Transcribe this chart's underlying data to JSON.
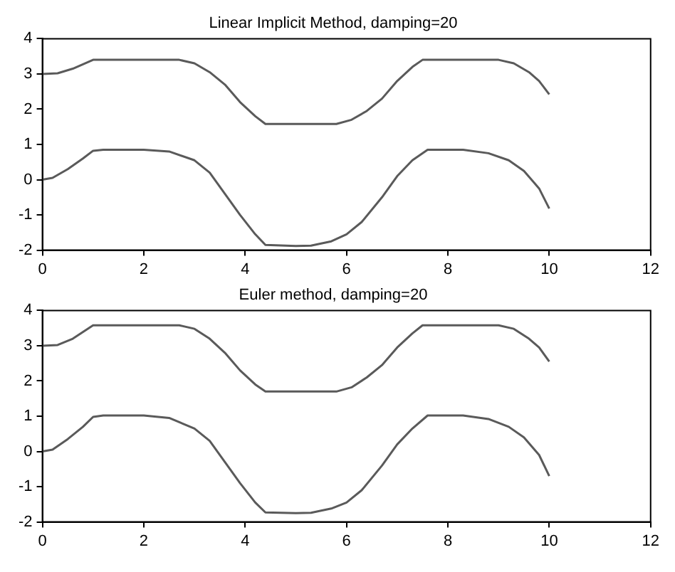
{
  "chart_data": [
    {
      "type": "line",
      "title": "Linear Implicit Method, damping=20",
      "xlim": [
        0,
        12
      ],
      "xticks": [
        0,
        2,
        4,
        6,
        8,
        10,
        12
      ],
      "ylim": [
        -2,
        4
      ],
      "yticks": [
        -2,
        -1,
        0,
        1,
        2,
        3,
        4
      ],
      "grid": false,
      "legend": false,
      "marker": "none",
      "line_style": "solid",
      "series": [
        {
          "color": "#5a5a5a",
          "x": [
            0,
            0.3,
            0.6,
            1.0,
            2.0,
            2.7,
            3.0,
            3.3,
            3.6,
            3.9,
            4.2,
            4.4,
            5.0,
            5.8,
            6.1,
            6.4,
            6.7,
            7.0,
            7.3,
            7.5,
            8.0,
            9.0,
            9.3,
            9.6,
            9.8,
            10
          ],
          "values": [
            3.0,
            3.02,
            3.15,
            3.4,
            3.4,
            3.4,
            3.3,
            3.05,
            2.7,
            2.2,
            1.8,
            1.58,
            1.58,
            1.58,
            1.7,
            1.95,
            2.3,
            2.8,
            3.2,
            3.4,
            3.4,
            3.4,
            3.3,
            3.05,
            2.8,
            2.42
          ]
        },
        {
          "color": "#5a5a5a",
          "x": [
            0,
            0.2,
            0.5,
            0.8,
            1.0,
            1.2,
            2.0,
            2.5,
            3.0,
            3.3,
            3.6,
            3.9,
            4.2,
            4.4,
            5.0,
            5.3,
            5.7,
            6.0,
            6.3,
            6.7,
            7.0,
            7.3,
            7.6,
            8.3,
            8.8,
            9.2,
            9.5,
            9.8,
            10
          ],
          "values": [
            0,
            0.05,
            0.3,
            0.6,
            0.82,
            0.85,
            0.85,
            0.8,
            0.55,
            0.2,
            -0.4,
            -1.0,
            -1.55,
            -1.85,
            -1.88,
            -1.87,
            -1.75,
            -1.55,
            -1.2,
            -0.5,
            0.1,
            0.55,
            0.85,
            0.85,
            0.75,
            0.55,
            0.25,
            -0.25,
            -0.82
          ]
        }
      ]
    },
    {
      "type": "line",
      "title": "Euler method, damping=20",
      "xlim": [
        0,
        12
      ],
      "xticks": [
        0,
        2,
        4,
        6,
        8,
        10,
        12
      ],
      "ylim": [
        -2,
        4
      ],
      "yticks": [
        -2,
        -1,
        0,
        1,
        2,
        3,
        4
      ],
      "grid": false,
      "legend": false,
      "marker": "none",
      "line_style": "solid",
      "series": [
        {
          "color": "#5a5a5a",
          "x": [
            0,
            0.3,
            0.6,
            1.0,
            2.0,
            2.7,
            3.0,
            3.3,
            3.6,
            3.9,
            4.2,
            4.4,
            5.0,
            5.8,
            6.1,
            6.4,
            6.7,
            7.0,
            7.3,
            7.5,
            8.0,
            9.0,
            9.3,
            9.6,
            9.8,
            10
          ],
          "values": [
            3.0,
            3.02,
            3.2,
            3.58,
            3.58,
            3.58,
            3.48,
            3.2,
            2.8,
            2.3,
            1.9,
            1.7,
            1.7,
            1.7,
            1.82,
            2.1,
            2.45,
            2.95,
            3.35,
            3.58,
            3.58,
            3.58,
            3.48,
            3.2,
            2.95,
            2.55
          ]
        },
        {
          "color": "#5a5a5a",
          "x": [
            0,
            0.2,
            0.5,
            0.8,
            1.0,
            1.2,
            2.0,
            2.5,
            3.0,
            3.3,
            3.6,
            3.9,
            4.2,
            4.4,
            5.0,
            5.3,
            5.7,
            6.0,
            6.3,
            6.7,
            7.0,
            7.3,
            7.6,
            8.3,
            8.8,
            9.2,
            9.5,
            9.8,
            10
          ],
          "values": [
            0,
            0.05,
            0.35,
            0.7,
            0.98,
            1.02,
            1.02,
            0.95,
            0.65,
            0.3,
            -0.3,
            -0.9,
            -1.45,
            -1.73,
            -1.75,
            -1.74,
            -1.62,
            -1.45,
            -1.1,
            -0.4,
            0.2,
            0.65,
            1.02,
            1.02,
            0.92,
            0.7,
            0.4,
            -0.1,
            -0.7
          ]
        }
      ]
    }
  ]
}
